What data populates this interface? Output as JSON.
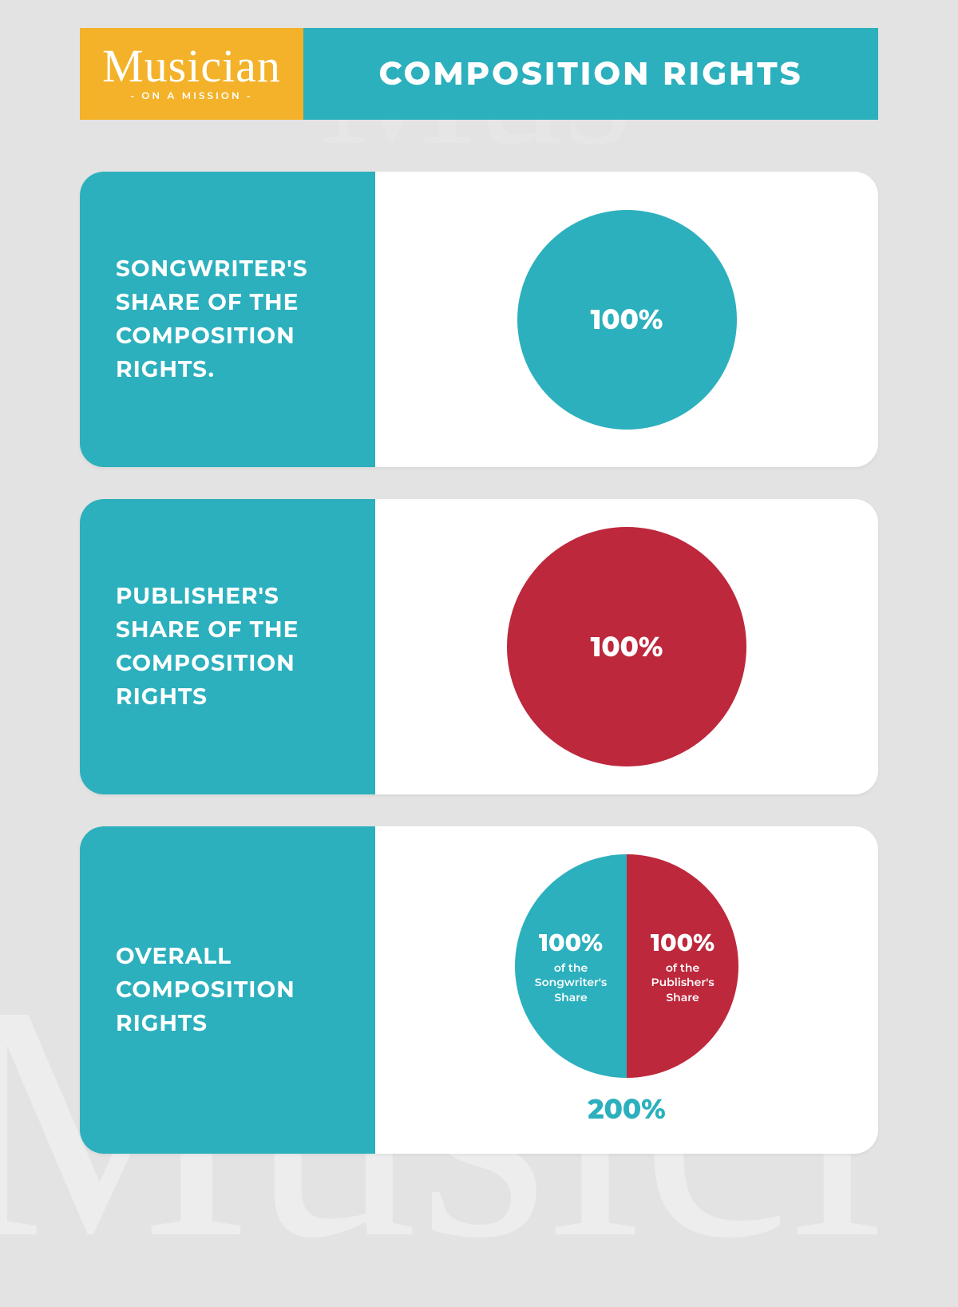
{
  "logo": {
    "script": "Musician",
    "subtitle": "- ON A MISSION -"
  },
  "title": "COMPOSITION RIGHTS",
  "colors": {
    "teal": "#2cb0bd",
    "red": "#bd283c",
    "yellow": "#f3b229",
    "bg": "#e3e3e3",
    "white": "#ffffff"
  },
  "cards": [
    {
      "label": "SONGWRITER'S SHARE OF THE COMPOSITION RIGHTS.",
      "type": "pie-single",
      "diameter": 275,
      "fill": "#2cb0bd",
      "value_text": "100%"
    },
    {
      "label": "PUBLISHER'S SHARE OF THE COMPOSITION RIGHTS",
      "type": "pie-single",
      "diameter": 300,
      "fill": "#bd283c",
      "value_text": "100%"
    },
    {
      "label": "OVERALL COMPOSITION RIGHTS",
      "type": "pie-split",
      "diameter": 280,
      "left": {
        "fill": "#2cb0bd",
        "pct": "100%",
        "sub": "of the Songwriter's Share"
      },
      "right": {
        "fill": "#bd283c",
        "pct": "100%",
        "sub": "of the Publisher's Share"
      },
      "total": "200%",
      "total_color": "#2cb0bd"
    }
  ]
}
